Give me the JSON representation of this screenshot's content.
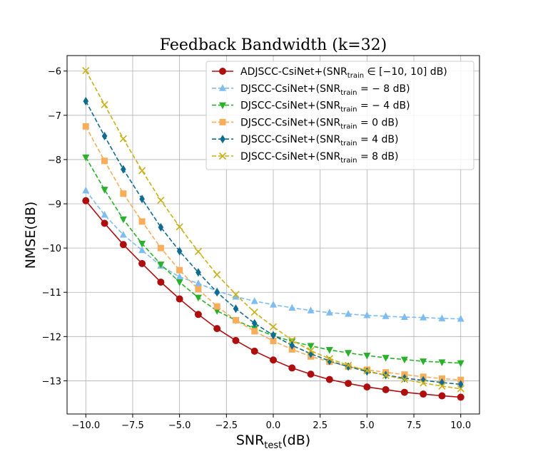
{
  "chart_data": {
    "type": "line",
    "title": "Feedback Bandwidth (k=32)",
    "xlabel": {
      "main": "SNR",
      "sub": "test",
      "suffix": "(dB)"
    },
    "ylabel": "NMSE(dB)",
    "xlim": [
      -11.0,
      11.0
    ],
    "ylim": [
      -13.75,
      -5.65
    ],
    "xticks": [
      -10.0,
      -7.5,
      -5.0,
      -2.5,
      0.0,
      2.5,
      5.0,
      7.5,
      10.0
    ],
    "xtick_labels": [
      "−10.0",
      "−7.5",
      "−5.0",
      "−2.5",
      "0.0",
      "2.5",
      "5.0",
      "7.5",
      "10.0"
    ],
    "yticks": [
      -13,
      -12,
      -11,
      -10,
      -9,
      -8,
      -7,
      -6
    ],
    "ytick_labels": [
      "−13",
      "−12",
      "−11",
      "−10",
      "−9",
      "−8",
      "−7",
      "−6"
    ],
    "grid": true,
    "legend_position": "top-right",
    "x": [
      -10,
      -9,
      -8,
      -7,
      -6,
      -5,
      -4,
      -3,
      -2,
      -1,
      0,
      1,
      2,
      3,
      4,
      5,
      6,
      7,
      8,
      9,
      10
    ],
    "series": [
      {
        "name": "ADJSCC-CsiNet+(SNR_train ∈ [−10, 10] dB)",
        "legend_prefix": "ADJSCC-CsiNet+(SNR",
        "legend_sub": "train",
        "legend_suffix": " ∈ [−10, 10] dB)",
        "color": "#ae0e0e",
        "line": "solid",
        "marker": "circle",
        "values": [
          -8.93,
          -9.44,
          -9.92,
          -10.35,
          -10.77,
          -11.15,
          -11.5,
          -11.82,
          -12.09,
          -12.33,
          -12.53,
          -12.71,
          -12.85,
          -12.97,
          -13.06,
          -13.14,
          -13.2,
          -13.26,
          -13.3,
          -13.34,
          -13.37
        ]
      },
      {
        "name": "DJSCC-CsiNet+(SNR_train = − 8 dB)",
        "legend_prefix": "DJSCC-CsiNet+(SNR",
        "legend_sub": "train",
        "legend_suffix": " = − 8 dB)",
        "color": "#7fbdf0",
        "line": "dashed",
        "marker": "triangle-up",
        "values": [
          -8.7,
          -9.25,
          -9.7,
          -10.05,
          -10.4,
          -10.65,
          -10.8,
          -10.97,
          -11.1,
          -11.2,
          -11.28,
          -11.35,
          -11.41,
          -11.46,
          -11.49,
          -11.52,
          -11.54,
          -11.56,
          -11.57,
          -11.59,
          -11.6
        ]
      },
      {
        "name": "DJSCC-CsiNet+(SNR_train = − 4 dB)",
        "legend_prefix": "DJSCC-CsiNet+(SNR",
        "legend_sub": "train",
        "legend_suffix": " = − 4 dB)",
        "color": "#2ab02a",
        "line": "dashed",
        "marker": "triangle-down",
        "values": [
          -7.95,
          -8.68,
          -9.35,
          -9.9,
          -10.37,
          -10.77,
          -11.12,
          -11.42,
          -11.63,
          -11.82,
          -11.98,
          -12.11,
          -12.21,
          -12.3,
          -12.37,
          -12.43,
          -12.48,
          -12.52,
          -12.56,
          -12.58,
          -12.6
        ]
      },
      {
        "name": "DJSCC-CsiNet+(SNR_train = 0 dB)",
        "legend_prefix": "DJSCC-CsiNet+(SNR",
        "legend_sub": "train",
        "legend_suffix": " = 0 dB)",
        "color": "#f7ad5a",
        "line": "dashed",
        "marker": "square",
        "values": [
          -7.25,
          -8.03,
          -8.77,
          -9.4,
          -10.0,
          -10.5,
          -10.93,
          -11.32,
          -11.63,
          -11.88,
          -12.1,
          -12.29,
          -12.45,
          -12.57,
          -12.68,
          -12.75,
          -12.81,
          -12.86,
          -12.91,
          -12.95,
          -12.98
        ]
      },
      {
        "name": "DJSCC-CsiNet+(SNR_train = 4 dB)",
        "legend_prefix": "DJSCC-CsiNet+(SNR",
        "legend_sub": "train",
        "legend_suffix": " = 4 dB)",
        "color": "#0f6b91",
        "line": "dashed",
        "marker": "thin-diamond",
        "values": [
          -6.68,
          -7.47,
          -8.22,
          -8.89,
          -9.53,
          -10.07,
          -10.55,
          -11.0,
          -11.37,
          -11.7,
          -11.97,
          -12.2,
          -12.39,
          -12.55,
          -12.68,
          -12.79,
          -12.87,
          -12.94,
          -12.99,
          -13.04,
          -13.08
        ]
      },
      {
        "name": "DJSCC-CsiNet+(SNR_train = 8 dB)",
        "legend_prefix": "DJSCC-CsiNet+(SNR",
        "legend_sub": "train",
        "legend_suffix": " = 8 dB)",
        "color": "#cab019",
        "line": "dashed",
        "marker": "x",
        "values": [
          -5.99,
          -6.76,
          -7.53,
          -8.25,
          -8.92,
          -9.52,
          -10.08,
          -10.6,
          -11.05,
          -11.45,
          -11.78,
          -12.08,
          -12.32,
          -12.5,
          -12.65,
          -12.77,
          -12.88,
          -12.97,
          -13.05,
          -13.12,
          -13.18
        ]
      }
    ]
  }
}
